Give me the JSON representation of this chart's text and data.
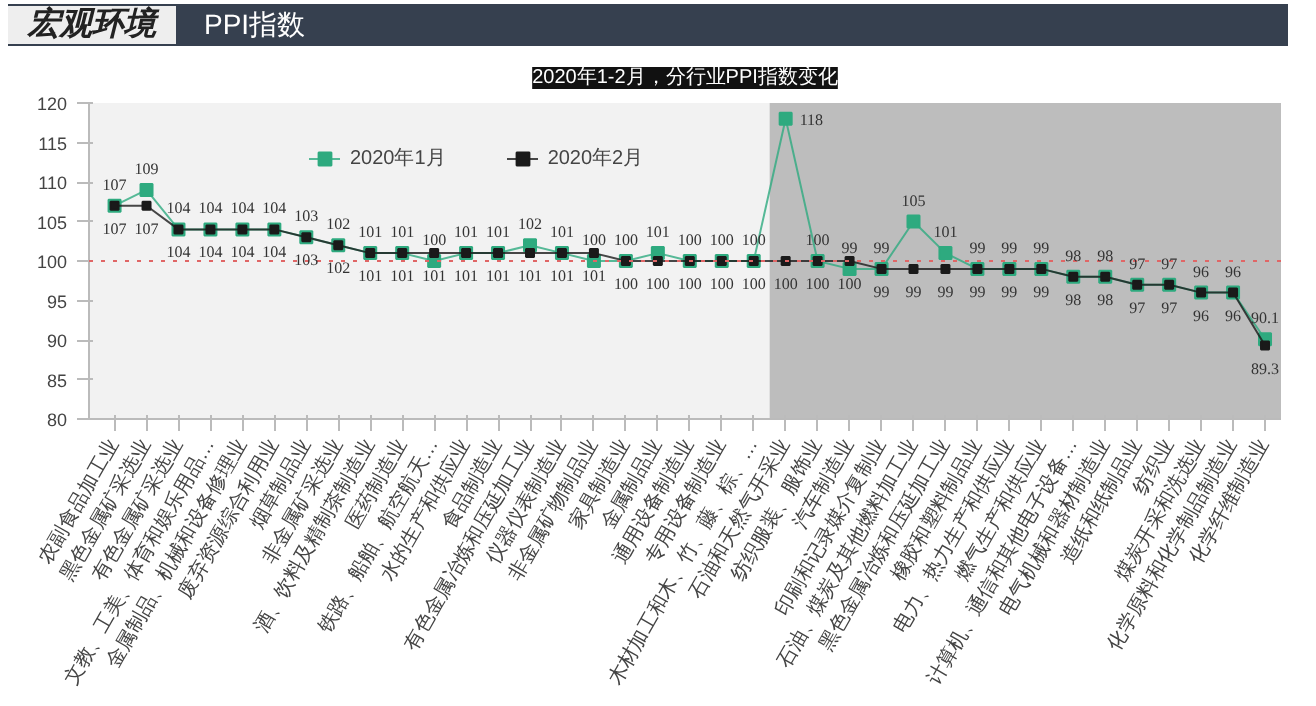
{
  "chart_data": {
    "type": "line",
    "title": "2020年1-2月，分行业PPI指数变化",
    "annotations": [
      "宏观环境",
      "PPI指数"
    ],
    "categories": [
      "农副食品加工业",
      "黑色金属矿采选业",
      "有色金属矿采选业",
      "文教、工美、体育和娱乐用品…",
      "金属制品、机械和设备修理业",
      "废弃资源综合利用业",
      "烟草制品业",
      "非金属矿采选业",
      "酒、饮料及精制茶制造业",
      "医药制造业",
      "铁路、船舶、航空航天…",
      "水的生产和供应业",
      "食品制造业",
      "有色金属冶炼和压延加工业",
      "仪器仪表制造业",
      "非金属矿物制品业",
      "家具制造业",
      "金属制品业",
      "通用设备制造业",
      "专用设备制造业",
      "木材加工和木、竹、藤、棕、…",
      "石油和天然气开采业",
      "纺织服装、服饰业",
      "汽车制造业",
      "印刷和记录媒介复制业",
      "石油、煤炭及其他燃料加工业",
      "黑色金属冶炼和压延加工业",
      "橡胶和塑料制品业",
      "电力、热力生产和供应业",
      "燃气生产和供应业",
      "计算机、通信和其他电子设备…",
      "电气机械和器材制造业",
      "造纸和纸制品业",
      "纺织业",
      "煤炭开采和洗选业",
      "化学原料和化学制品制造业",
      "化学纤维制造业"
    ],
    "series": [
      {
        "name": "2020年1月",
        "color": "#2eaa7f",
        "values": [
          107,
          109,
          104,
          104,
          104,
          104,
          103,
          102,
          101,
          101,
          100,
          101,
          101,
          102,
          101,
          100,
          100,
          101,
          100,
          100,
          100,
          118,
          100,
          99,
          99,
          105,
          101,
          99,
          99,
          99,
          98,
          98,
          97,
          97,
          96,
          96,
          90.1
        ]
      },
      {
        "name": "2020年2月",
        "color": "#1a1a1a",
        "values": [
          107,
          107,
          104,
          104,
          104,
          104,
          103,
          102,
          101,
          101,
          101,
          101,
          101,
          101,
          101,
          101,
          100,
          100,
          100,
          100,
          100,
          100,
          100,
          100,
          99,
          99,
          99,
          99,
          99,
          99,
          98,
          98,
          97,
          97,
          96,
          96,
          89.3
        ]
      }
    ],
    "ylim": [
      80,
      120
    ],
    "yticks": [
      80,
      85,
      90,
      95,
      100,
      105,
      110,
      115,
      120
    ],
    "ref_lines": [
      {
        "axis": "y",
        "value": 100,
        "color": "#e06666",
        "line_style": "dotted"
      }
    ],
    "bands": [
      {
        "axis": "x",
        "from": "石油和天然气开采业",
        "to": "化学纤维制造业",
        "color": "#bdbdbd"
      }
    ],
    "data_labels": true,
    "marker": "square",
    "legend": "top",
    "grid": false
  }
}
